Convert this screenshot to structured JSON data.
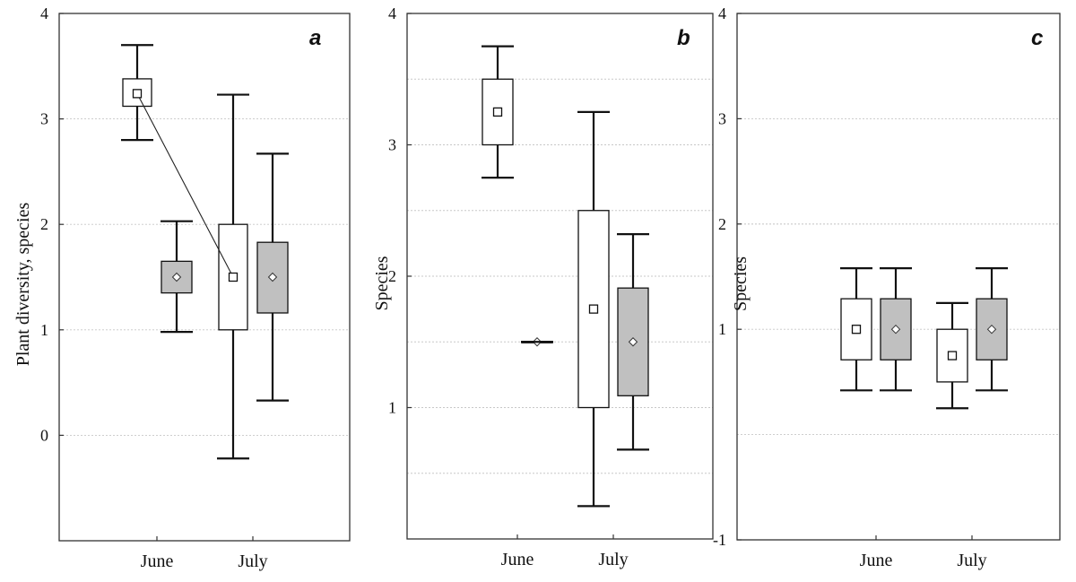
{
  "figure": {
    "background": "#ffffff"
  },
  "colors": {
    "box_a": "#ffffff",
    "box_b": "#c0c0c0",
    "line": "#111111"
  },
  "chart_data": [
    {
      "type": "box",
      "panel": "a",
      "ylabel": "Plant diversity, species",
      "ylim": [
        -1,
        4
      ],
      "yticks": [
        0,
        1,
        2,
        3,
        4
      ],
      "grid": true,
      "categories": [
        "June",
        "July"
      ],
      "series": [
        {
          "fill": "#ffffff",
          "marker": "square",
          "boxes": [
            {
              "category": "June",
              "mean": 3.24,
              "box_low": 3.12,
              "box_high": 3.38,
              "whisker_low": 2.8,
              "whisker_high": 3.7
            },
            {
              "category": "July",
              "mean": 1.5,
              "box_low": 1.0,
              "box_high": 2.0,
              "whisker_low": -0.22,
              "whisker_high": 3.23
            }
          ]
        },
        {
          "fill": "#c0c0c0",
          "marker": "diamond",
          "boxes": [
            {
              "category": "June",
              "mean": 1.5,
              "box_low": 1.35,
              "box_high": 1.65,
              "whisker_low": 0.98,
              "whisker_high": 2.03
            },
            {
              "category": "July",
              "mean": 1.5,
              "box_low": 1.16,
              "box_high": 1.83,
              "whisker_low": 0.33,
              "whisker_high": 2.67
            }
          ]
        }
      ],
      "connectors": [
        {
          "from": [
            0,
            0
          ],
          "to": [
            0,
            1
          ],
          "style": "solid"
        },
        {
          "from": [
            1,
            0
          ],
          "to": [
            0,
            1
          ],
          "style": "dashed"
        }
      ]
    },
    {
      "type": "box",
      "panel": "b",
      "ylabel": "Species",
      "ylim": [
        0,
        4
      ],
      "yticks": [
        1,
        2,
        3,
        4
      ],
      "minor_grid": [
        0.5,
        1.5,
        2.5,
        3.5
      ],
      "grid": true,
      "categories": [
        "June",
        "July"
      ],
      "series": [
        {
          "fill": "#ffffff",
          "marker": "square",
          "boxes": [
            {
              "category": "June",
              "mean": 3.25,
              "box_low": 3.0,
              "box_high": 3.5,
              "whisker_low": 2.75,
              "whisker_high": 3.75
            },
            {
              "category": "July",
              "mean": 1.75,
              "box_low": 1.0,
              "box_high": 2.5,
              "whisker_low": 0.25,
              "whisker_high": 3.25
            }
          ]
        },
        {
          "fill": "#c0c0c0",
          "marker": "diamond",
          "boxes": [
            {
              "category": "June",
              "mean": 1.5,
              "box_low": 1.5,
              "box_high": 1.5,
              "whisker_low": 1.5,
              "whisker_high": 1.5
            },
            {
              "category": "July",
              "mean": 1.5,
              "box_low": 1.09,
              "box_high": 1.91,
              "whisker_low": 0.68,
              "whisker_high": 2.32
            }
          ]
        }
      ],
      "connectors": []
    },
    {
      "type": "box",
      "panel": "c",
      "ylabel": "Species",
      "ylim": [
        -1,
        3
      ],
      "yticks": [
        -1,
        1,
        3
      ],
      "ytick_labels": [
        "-1",
        "1",
        "3",
        "2",
        "4"
      ],
      "label_positions": [
        -1,
        1,
        3,
        2,
        4
      ],
      "ylim_display": [
        -1,
        4
      ],
      "minor_grid": [
        0,
        2
      ],
      "grid": true,
      "categories": [
        "June",
        "July"
      ],
      "series": [
        {
          "fill": "#ffffff",
          "marker": "square",
          "boxes": [
            {
              "category": "June",
              "mean": 1.0,
              "box_low": 0.71,
              "box_high": 1.29,
              "whisker_low": 0.42,
              "whisker_high": 1.58
            },
            {
              "category": "July",
              "mean": 0.75,
              "box_low": 0.5,
              "box_high": 1.0,
              "whisker_low": 0.25,
              "whisker_high": 1.25
            }
          ]
        },
        {
          "fill": "#c0c0c0",
          "marker": "diamond",
          "boxes": [
            {
              "category": "June",
              "mean": 1.0,
              "box_low": 0.71,
              "box_high": 1.29,
              "whisker_low": 0.42,
              "whisker_high": 1.58
            },
            {
              "category": "July",
              "mean": 1.0,
              "box_low": 0.71,
              "box_high": 1.29,
              "whisker_low": 0.42,
              "whisker_high": 1.58
            }
          ]
        }
      ],
      "connectors": []
    }
  ]
}
